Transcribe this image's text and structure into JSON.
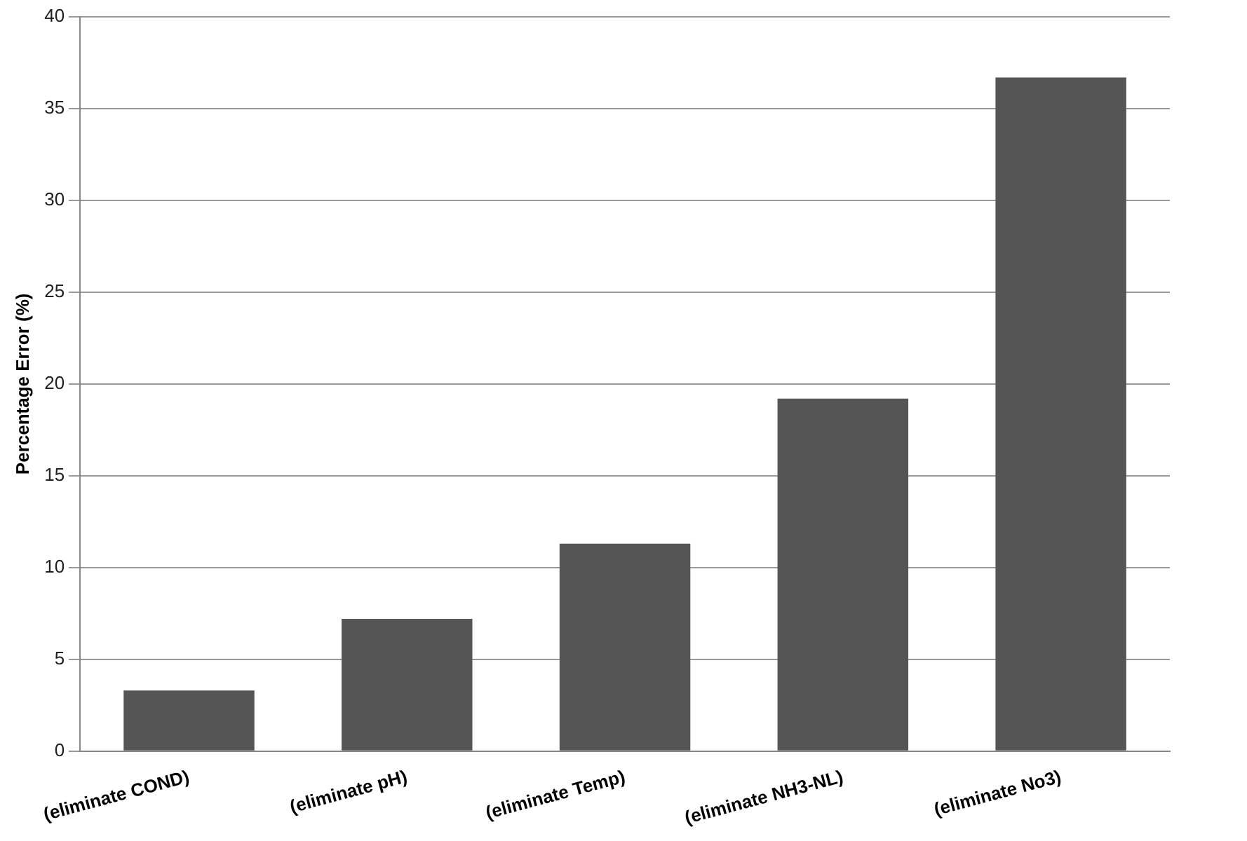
{
  "chart_data": {
    "type": "bar",
    "ylabel": "Percentage Error (%)",
    "categories": [
      "(eliminate COND)",
      "(eliminate pH)",
      "(eliminate Temp)",
      "(eliminate NH3-NL)",
      "(eliminate No3)"
    ],
    "values": [
      3.3,
      7.2,
      11.3,
      19.2,
      36.7
    ],
    "color": "#555555",
    "ylim": [
      0,
      40
    ],
    "yticks": [
      0,
      5,
      10,
      15,
      20,
      25,
      30,
      35,
      40
    ],
    "grid": "y"
  }
}
